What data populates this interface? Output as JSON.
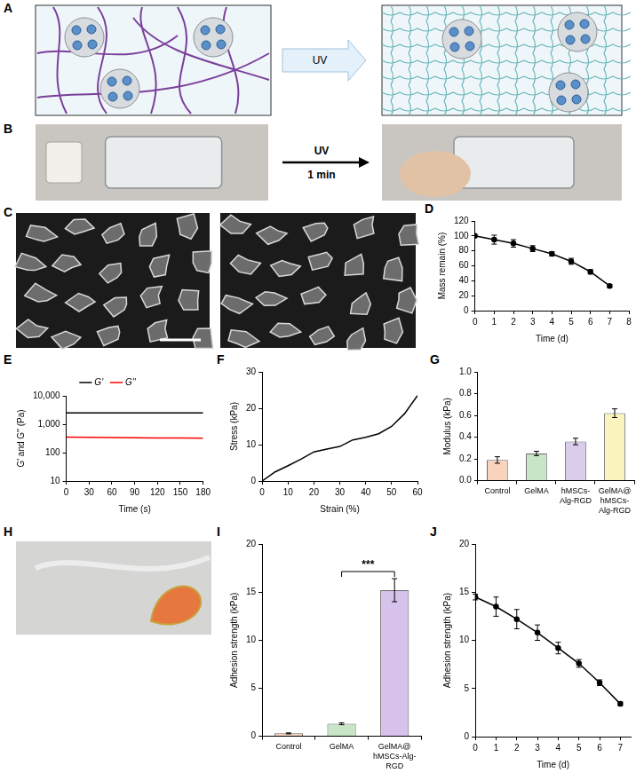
{
  "panels": {
    "A": {
      "letter": "A",
      "arrow_label": "UV"
    },
    "B": {
      "letter": "B",
      "arrow_label": "UV",
      "arrow_sublabel": "1 min"
    },
    "C": {
      "letter": "C"
    },
    "H": {
      "letter": "H"
    }
  },
  "chart_data": [
    {
      "panel": "D",
      "type": "line",
      "x": [
        0,
        1,
        2,
        3,
        4,
        5,
        6,
        7
      ],
      "values": [
        100,
        95,
        90,
        83,
        76,
        66,
        52,
        33
      ],
      "errors": [
        0,
        6,
        5,
        4,
        3,
        4,
        3,
        2
      ],
      "color": "#000000",
      "marker": "circle",
      "x_label": "Time (d)",
      "y_label": "Mass remain (%)",
      "xlim": [
        0,
        8
      ],
      "xticks": [
        0,
        1,
        2,
        3,
        4,
        5,
        6,
        7,
        8
      ],
      "ylim": [
        0,
        120
      ],
      "yticks": [
        0,
        20,
        40,
        60,
        80,
        100,
        120
      ],
      "grid": false
    },
    {
      "panel": "E",
      "type": "line",
      "x": [
        0,
        30,
        60,
        90,
        120,
        150,
        180
      ],
      "series": [
        {
          "name": "G'",
          "color": "#000000",
          "values": [
            2500,
            2500,
            2500,
            2500,
            2500,
            2500,
            2500
          ]
        },
        {
          "name": "G''",
          "color": "#ff0000",
          "values": [
            350,
            345,
            340,
            335,
            330,
            325,
            320
          ]
        }
      ],
      "x_label": "Time (s)",
      "y_label": "G' and G'' (Pa)",
      "xlim": [
        0,
        180
      ],
      "xticks": [
        0,
        30,
        60,
        90,
        120,
        150,
        180
      ],
      "ylim": [
        10,
        10000
      ],
      "yticks": [
        10,
        100,
        {
          "value": 1000,
          "label": "1,000"
        },
        {
          "value": 10000,
          "label": "10,000"
        }
      ],
      "log": "y",
      "legend": "top",
      "grid": false
    },
    {
      "panel": "F",
      "type": "line",
      "x": [
        0,
        5,
        10,
        15,
        20,
        25,
        30,
        35,
        40,
        45,
        50,
        55,
        60
      ],
      "values": [
        0,
        2.5,
        4.2,
        6,
        8,
        8.8,
        9.5,
        11.3,
        12,
        13,
        15,
        18.5,
        23.5
      ],
      "color": "#000000",
      "x_label": "Strain (%)",
      "y_label": "Stress (kPa)",
      "xlim": [
        0,
        60
      ],
      "xticks": [
        0,
        10,
        20,
        30,
        40,
        50,
        60
      ],
      "ylim": [
        0,
        30
      ],
      "yticks": [
        0,
        10,
        20,
        30
      ],
      "grid": false
    },
    {
      "panel": "G",
      "type": "bar",
      "categories": [
        "Control",
        "GelMA",
        "hMSCs-Alg-RGD",
        "GelMA@hMSCs-Alg-RGD"
      ],
      "values": [
        0.19,
        0.25,
        0.36,
        0.62
      ],
      "errors": [
        0.03,
        0.02,
        0.03,
        0.04
      ],
      "colors": [
        "#fad3bd",
        "#c8e6c6",
        "#d9cdeb",
        "#fbf4bd"
      ],
      "y_label": "Modulus (kPa)",
      "ylim": [
        0,
        1
      ],
      "yticks": [
        {
          "value": 0,
          "label": "0.0"
        },
        0.2,
        0.4,
        0.6,
        0.8,
        {
          "value": 1,
          "label": "1.0"
        }
      ],
      "grid": false
    },
    {
      "panel": "I",
      "type": "bar",
      "categories": [
        "Control",
        "GelMA",
        "GelMA@hMSCs-Alg-RGD"
      ],
      "values": [
        0.3,
        1.3,
        15.2
      ],
      "errors": [
        0.05,
        0.1,
        1.2
      ],
      "colors": [
        "#fad3bd",
        "#c8e6c6",
        "#d6c2ea"
      ],
      "y_label": "Adhesion strength (kPa)",
      "ylim": [
        0,
        20
      ],
      "yticks": [
        0,
        5,
        10,
        15,
        20
      ],
      "significance": {
        "label": "***",
        "between": [
          "GelMA",
          "GelMA@hMSCs-Alg-RGD"
        ]
      },
      "grid": false
    },
    {
      "panel": "J",
      "type": "line",
      "x": [
        0,
        1,
        2,
        3,
        4,
        5,
        6,
        7
      ],
      "values": [
        14.5,
        13.5,
        12.2,
        10.8,
        9.2,
        7.6,
        5.6,
        3.4
      ],
      "errors": [
        0.3,
        1,
        1,
        0.8,
        0.6,
        0.4,
        0.3,
        0.2
      ],
      "color": "#000000",
      "marker": "circle",
      "x_label": "Time (d)",
      "y_label": "Adhesion strength (kPa)",
      "xlim": [
        0,
        7.5
      ],
      "xticks": [
        0,
        1,
        2,
        3,
        4,
        5,
        6,
        7
      ],
      "ylim": [
        0,
        20
      ],
      "yticks": [
        0,
        5,
        10,
        15,
        20
      ],
      "grid": false
    }
  ]
}
